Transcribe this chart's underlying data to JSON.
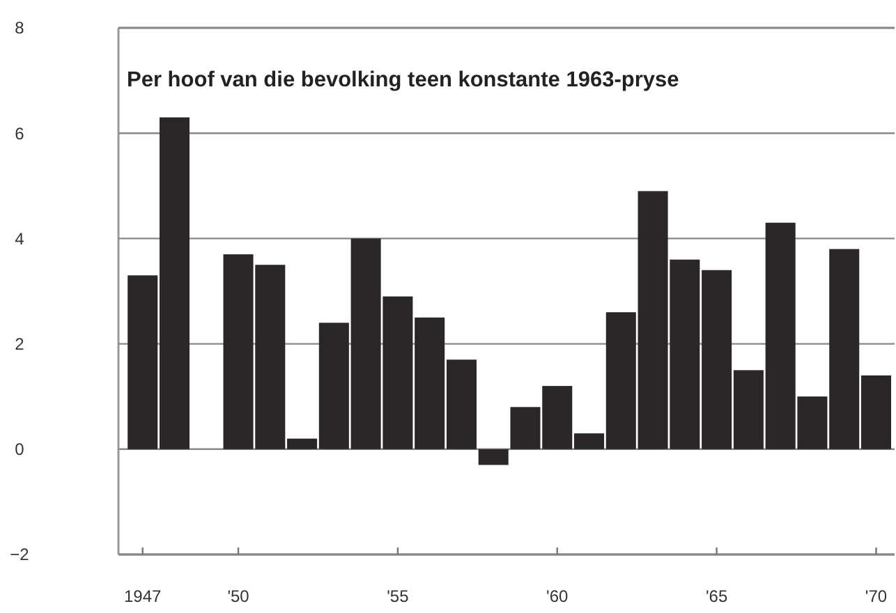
{
  "chart_data": {
    "type": "bar",
    "title": "Per hoof van die bevolking teen konstante 1963-pryse",
    "categories": [
      "1947",
      null,
      null,
      "'50",
      null,
      null,
      null,
      null,
      "'55",
      null,
      null,
      null,
      null,
      "'60",
      null,
      null,
      null,
      null,
      "'65",
      null,
      null,
      null,
      null,
      "'70"
    ],
    "values": [
      3.3,
      6.3,
      null,
      3.7,
      3.5,
      0.2,
      2.4,
      4.0,
      2.9,
      2.5,
      1.7,
      -0.3,
      0.8,
      1.2,
      0.3,
      2.6,
      4.9,
      3.6,
      3.4,
      1.5,
      4.3,
      1.0,
      3.8,
      1.4
    ],
    "color": "#2b2628",
    "ylim": [
      -2,
      8
    ],
    "yticks": [
      -2,
      0,
      2,
      4,
      6,
      8
    ],
    "grid": "y"
  }
}
